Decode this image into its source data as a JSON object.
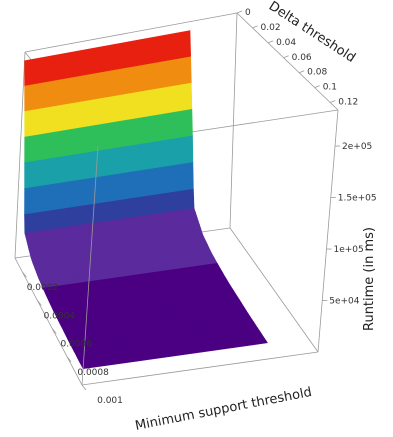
{
  "chart_data": {
    "type": "surface3d",
    "x_axis": {
      "label": "Minimum support threshold",
      "ticks": [
        "0.0002",
        "0.0004",
        "0.0006",
        "0.0008",
        "0.001"
      ],
      "range": [
        0.0001,
        0.001
      ]
    },
    "y_axis": {
      "label": "Delta threshold",
      "ticks": [
        "0",
        "0.02",
        "0.04",
        "0.06",
        "0.08",
        "0.1",
        "0.12"
      ],
      "range": [
        0,
        0.13
      ]
    },
    "z_axis": {
      "label": "Runtime (in ms)",
      "ticks": [
        "5e+04",
        "1e+05",
        "1.5e+05",
        "2e+05"
      ],
      "range": [
        0,
        235000
      ]
    },
    "surface": {
      "min_support": [
        0.0001,
        0.0002,
        0.0003,
        0.0004,
        0.0005,
        0.0006,
        0.0007,
        0.0008,
        0.0009,
        0.001
      ],
      "runtime_ms": [
        225000,
        45000,
        30000,
        24000,
        21000,
        19000,
        18000,
        17000,
        16500,
        16000
      ]
    },
    "colormap": [
      "#4b0082",
      "#5b2a9c",
      "#2e3f9e",
      "#1f6fb8",
      "#1aa0a8",
      "#2fbf5a",
      "#9ad01a",
      "#f0e020",
      "#f08c10",
      "#e82010"
    ]
  }
}
